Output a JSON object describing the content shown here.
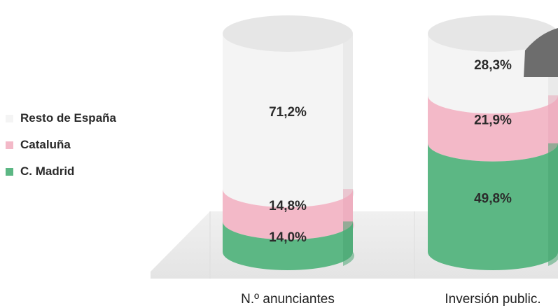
{
  "chart_data": {
    "type": "bar",
    "stacked": true,
    "categories": [
      "N.º anunciantes",
      "Inversión public."
    ],
    "series": [
      {
        "name": "C. Madrid",
        "color": "#5cb784",
        "values": [
          14.0,
          49.8
        ],
        "labels": [
          "14,0%",
          "49,8%"
        ]
      },
      {
        "name": "Cataluña",
        "color": "#f3b9c8",
        "values": [
          14.8,
          21.9
        ],
        "labels": [
          "14,8%",
          "21,9%"
        ]
      },
      {
        "name": "Resto de España",
        "color": "#f4f4f4",
        "values": [
          71.2,
          28.3
        ],
        "labels": [
          "71,2%",
          "28,3%"
        ]
      }
    ],
    "unit": "%",
    "ylim": [
      0,
      100
    ],
    "legend": [
      {
        "label": "Resto de España",
        "color": "#f4f4f4"
      },
      {
        "label": "Cataluña",
        "color": "#f3b9c8"
      },
      {
        "label": "C. Madrid",
        "color": "#5cb784"
      }
    ],
    "legend_position": "left",
    "grid": false
  }
}
